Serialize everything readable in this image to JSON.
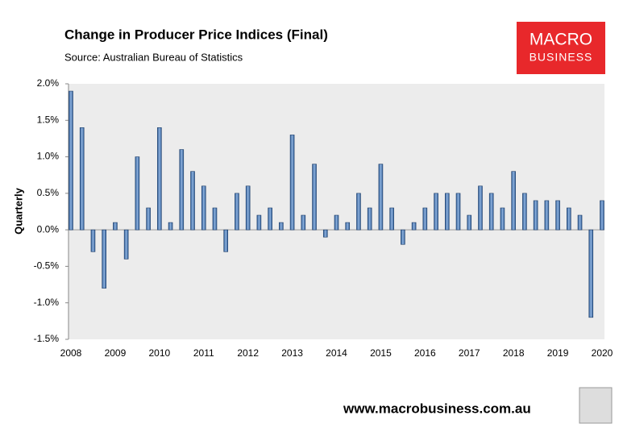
{
  "chart_data": {
    "type": "bar",
    "title": "Change in Producer Price Indices (Final)",
    "subtitle": "Source:  Australian Bureau of Statistics",
    "logo": [
      "MACRO",
      "BUSINESS"
    ],
    "footer": "www.macrobusiness.com.au",
    "y_label": "Quarterly",
    "color": "#4f7fbf",
    "categories": [
      "2008",
      null,
      null,
      null,
      "2009",
      null,
      null,
      null,
      "2010",
      null,
      null,
      null,
      "2011",
      null,
      null,
      null,
      "2012",
      null,
      null,
      null,
      "2013",
      null,
      null,
      null,
      "2014",
      null,
      null,
      null,
      "2015",
      null,
      null,
      null,
      "2016",
      null,
      null,
      null,
      "2017",
      null,
      null,
      null,
      "2018",
      null,
      null,
      null,
      "2019",
      null,
      null,
      null,
      "2020"
    ],
    "values": [
      1.9,
      1.4,
      -0.3,
      -0.8,
      0.1,
      -0.4,
      1.0,
      0.3,
      1.4,
      0.1,
      1.1,
      0.8,
      0.6,
      0.3,
      -0.3,
      0.5,
      0.6,
      0.2,
      0.3,
      0.1,
      1.3,
      0.2,
      0.9,
      -0.1,
      0.2,
      0.1,
      0.5,
      0.3,
      0.9,
      0.3,
      -0.2,
      0.1,
      0.3,
      0.5,
      0.5,
      0.5,
      0.2,
      0.6,
      0.5,
      0.3,
      0.8,
      0.5,
      0.4,
      0.4,
      0.4,
      0.3,
      0.2,
      -1.2,
      0.4
    ],
    "ylim": [
      -1.5,
      2.0
    ],
    "yticks": [
      {
        "value": -1.5,
        "label": "-1.5%"
      },
      {
        "value": -1.0,
        "label": "-1.0%"
      },
      {
        "value": -0.5,
        "label": "-0.5%"
      },
      {
        "value": 0,
        "label": "0.0%"
      },
      {
        "value": 0.5,
        "label": "0.5%"
      },
      {
        "value": 1.0,
        "label": "1.0%"
      },
      {
        "value": 1.5,
        "label": "1.5%"
      },
      {
        "value": 2.0,
        "label": "2.0%"
      }
    ],
    "grid": false
  }
}
